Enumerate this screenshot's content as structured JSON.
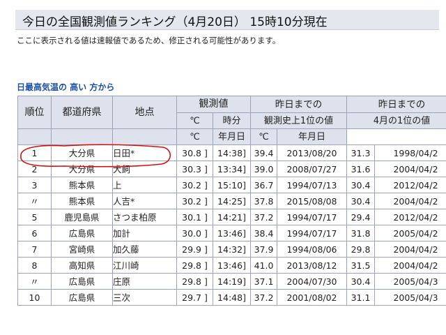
{
  "page": {
    "title": "今日の全国観測値ランキング（4月20日） 15時10分現在",
    "notice": "ここに表示される値は速報値であるため、修正される可能性があります。",
    "section_title": "日最高気温の 高い 方から"
  },
  "table": {
    "headers": {
      "rank": "順位",
      "prefecture": "都道府県",
      "location": "地点",
      "observed": "観測値",
      "history_line1": "昨日までの",
      "history_line2": "観測史上1位の値",
      "april_line1": "昨日までの",
      "april_line2": "4月の1位の値",
      "sub_celsius_1": "℃",
      "sub_time": "時分",
      "sub_celsius_2": "℃",
      "sub_date_1": "年月日",
      "sub_celsius_3": "℃",
      "sub_date_2": "年月日"
    },
    "rows": [
      {
        "rank": "1",
        "pref": "大分県",
        "loc": "日田*",
        "temp": "30.8 ]",
        "time": "14:38]",
        "hist_temp": "39.4",
        "hist_date": "2013/08/20",
        "apr_temp": "31.3",
        "apr_date": "1998/04/2"
      },
      {
        "rank": "2",
        "pref": "大分県",
        "loc": "犬飼",
        "temp": "30.3 ]",
        "time": "13:34]",
        "hist_temp": "39.0",
        "hist_date": "2008/07/27",
        "apr_temp": "31.6",
        "apr_date": "2004/04/2"
      },
      {
        "rank": "3",
        "pref": "熊本県",
        "loc": "上",
        "temp": "30.2 ]",
        "time": "15:10]",
        "hist_temp": "36.7",
        "hist_date": "1994/07/13",
        "apr_temp": "30.4",
        "apr_date": "2012/04/2"
      },
      {
        "rank": "〃",
        "pref": "熊本県",
        "loc": "人吉*",
        "temp": "30.2 ]",
        "time": "14:25]",
        "hist_temp": "37.8",
        "hist_date": "2015/08/08",
        "apr_temp": "30.4",
        "apr_date": "2004/04/2"
      },
      {
        "rank": "5",
        "pref": "鹿児島県",
        "loc": "さつま柏原",
        "temp": "30.1 ]",
        "time": "14:21]",
        "hist_temp": "37.2",
        "hist_date": "1994/07/17",
        "apr_temp": "29.4",
        "apr_date": "2012/04/2"
      },
      {
        "rank": "6",
        "pref": "広島県",
        "loc": "加計",
        "temp": "30.0 ]",
        "time": "13:46]",
        "hist_temp": "38.4",
        "hist_date": "1994/07/17",
        "apr_temp": "31.8",
        "apr_date": "2005/04/2"
      },
      {
        "rank": "7",
        "pref": "宮崎県",
        "loc": "加久藤",
        "temp": "29.9 ]",
        "time": "14:32]",
        "hist_temp": "37.9",
        "hist_date": "1994/08/06",
        "apr_temp": "29.8",
        "apr_date": "2004/04/2"
      },
      {
        "rank": "8",
        "pref": "高知県",
        "loc": "江川崎",
        "temp": "29.8 ]",
        "time": "13:46]",
        "hist_temp": "41.0",
        "hist_date": "2013/08/12",
        "apr_temp": "31.5",
        "apr_date": "2004/04/2"
      },
      {
        "rank": "〃",
        "pref": "広島県",
        "loc": "庄原",
        "temp": "29.8 ]",
        "time": "14:19]",
        "hist_temp": "37.1",
        "hist_date": "2004/07/30",
        "apr_temp": "30.4",
        "apr_date": "2005/04/3"
      },
      {
        "rank": "10",
        "pref": "広島県",
        "loc": "三次",
        "temp": "29.7 ]",
        "time": "14:48]",
        "hist_temp": "37.2",
        "hist_date": "2001/08/02",
        "apr_temp": "31.1",
        "apr_date": "2005/04/3"
      }
    ]
  },
  "colors": {
    "header_bg": "#dde2ec",
    "title_bg": "#e4e7ee",
    "section_text": "#1b4fa6",
    "annotation_circle": "#d01010"
  }
}
